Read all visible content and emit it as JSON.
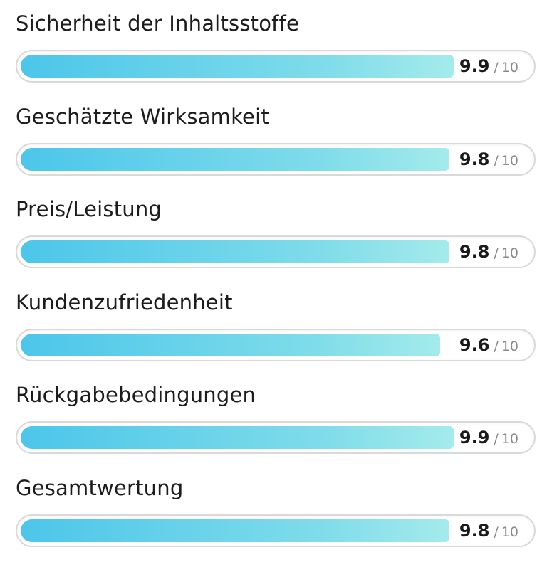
{
  "ratings": [
    {
      "label": "Sicherheit der Inhaltsstoffe",
      "score": "9.9",
      "max": "10",
      "value": 9.9
    },
    {
      "label": "Geschätzte Wirksamkeit",
      "score": "9.8",
      "max": "10",
      "value": 9.8
    },
    {
      "label": "Preis/Leistung",
      "score": "9.8",
      "max": "10",
      "value": 9.8
    },
    {
      "label": "Kundenzufriedenheit",
      "score": "9.6",
      "max": "10",
      "value": 9.6
    },
    {
      "label": "Rückgabebedingungen",
      "score": "9.9",
      "max": "10",
      "value": 9.9
    },
    {
      "label": "Gesamtwertung",
      "score": "9.8",
      "max": "10",
      "value": 9.8
    }
  ],
  "separator": "/",
  "colors": {
    "bar_start": "#4cc6ea",
    "bar_end": "#a4ebeb",
    "track_border": "#d9d9d9"
  }
}
